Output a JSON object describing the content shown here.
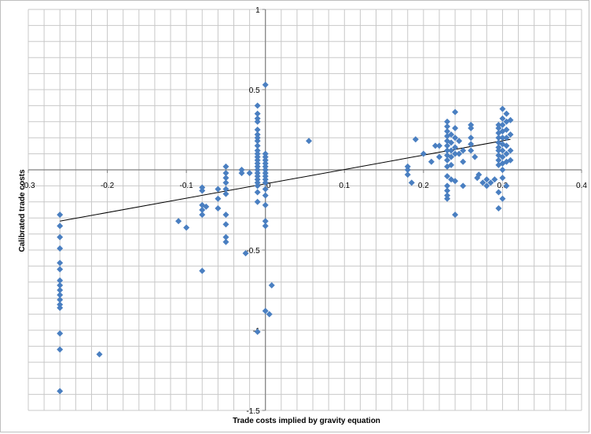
{
  "chart_data": {
    "type": "scatter",
    "title": "",
    "xlabel": "Trade costs implied by gravity equation",
    "ylabel": "Calibrated trade costs",
    "xlim": [
      -0.3,
      0.4
    ],
    "ylim": [
      -1.5,
      1
    ],
    "x_ticks": [
      -0.3,
      -0.2,
      -0.1,
      0,
      0.1,
      0.2,
      0.3,
      0.4
    ],
    "x_tick_labels": [
      "-0.3",
      "-0.2",
      "-0.1",
      "0",
      "0.1",
      "0.2",
      "0.3",
      "0.4"
    ],
    "y_ticks": [
      1,
      0.5,
      0,
      -0.5,
      -1,
      -1.5
    ],
    "y_tick_labels": [
      "1",
      "0.5",
      "",
      "-0.5",
      "-1",
      "-1.5"
    ],
    "grid": true,
    "legend": "none",
    "marker_color": "#4a7fc1",
    "line_color": "#000000",
    "trendline": {
      "x": [
        -0.26,
        0.31
      ],
      "y": [
        -0.32,
        0.19
      ]
    },
    "series": [
      {
        "points": [
          [
            -0.26,
            -0.28
          ],
          [
            -0.26,
            -0.35
          ],
          [
            -0.26,
            -0.42
          ],
          [
            -0.26,
            -0.49
          ],
          [
            -0.26,
            -0.58
          ],
          [
            -0.26,
            -0.62
          ],
          [
            -0.26,
            -0.69
          ],
          [
            -0.26,
            -0.72
          ],
          [
            -0.26,
            -0.75
          ],
          [
            -0.26,
            -0.78
          ],
          [
            -0.26,
            -0.81
          ],
          [
            -0.26,
            -0.84
          ],
          [
            -0.26,
            -0.86
          ],
          [
            -0.26,
            -1.02
          ],
          [
            -0.26,
            -1.12
          ],
          [
            -0.26,
            -1.38
          ],
          [
            -0.21,
            -1.15
          ],
          [
            -0.11,
            -0.32
          ],
          [
            -0.1,
            -0.36
          ],
          [
            -0.08,
            -0.11
          ],
          [
            -0.08,
            -0.13
          ],
          [
            -0.08,
            -0.22
          ],
          [
            -0.08,
            -0.25
          ],
          [
            -0.08,
            -0.28
          ],
          [
            -0.08,
            -0.63
          ],
          [
            -0.075,
            -0.23
          ],
          [
            -0.06,
            -0.12
          ],
          [
            -0.06,
            -0.18
          ],
          [
            -0.06,
            -0.24
          ],
          [
            -0.05,
            0.02
          ],
          [
            -0.05,
            -0.02
          ],
          [
            -0.05,
            -0.05
          ],
          [
            -0.05,
            -0.08
          ],
          [
            -0.05,
            -0.12
          ],
          [
            -0.05,
            -0.15
          ],
          [
            -0.05,
            -0.28
          ],
          [
            -0.05,
            -0.34
          ],
          [
            -0.05,
            -0.42
          ],
          [
            -0.05,
            -0.45
          ],
          [
            -0.03,
            0.0
          ],
          [
            -0.03,
            -0.02
          ],
          [
            -0.025,
            -0.52
          ],
          [
            -0.02,
            -0.02
          ],
          [
            -0.01,
            0.4
          ],
          [
            -0.01,
            0.35
          ],
          [
            -0.01,
            0.32
          ],
          [
            -0.01,
            0.3
          ],
          [
            -0.01,
            0.25
          ],
          [
            -0.01,
            0.22
          ],
          [
            -0.01,
            0.2
          ],
          [
            -0.01,
            0.18
          ],
          [
            -0.01,
            0.15
          ],
          [
            -0.01,
            0.12
          ],
          [
            -0.01,
            0.1
          ],
          [
            -0.01,
            0.08
          ],
          [
            -0.01,
            0.06
          ],
          [
            -0.01,
            0.04
          ],
          [
            -0.01,
            0.02
          ],
          [
            -0.01,
            0.0
          ],
          [
            -0.01,
            -0.02
          ],
          [
            -0.01,
            -0.04
          ],
          [
            -0.01,
            -0.06
          ],
          [
            -0.01,
            -0.08
          ],
          [
            -0.01,
            -0.1
          ],
          [
            -0.01,
            -0.14
          ],
          [
            -0.01,
            -0.2
          ],
          [
            -0.01,
            -1.01
          ],
          [
            0.0,
            0.53
          ],
          [
            0.0,
            0.1
          ],
          [
            0.0,
            0.08
          ],
          [
            0.0,
            0.06
          ],
          [
            0.0,
            0.04
          ],
          [
            0.0,
            0.02
          ],
          [
            0.0,
            0.0
          ],
          [
            0.0,
            -0.02
          ],
          [
            0.0,
            -0.04
          ],
          [
            0.0,
            -0.06
          ],
          [
            0.0,
            -0.08
          ],
          [
            0.0,
            -0.12
          ],
          [
            0.0,
            -0.16
          ],
          [
            0.0,
            -0.22
          ],
          [
            0.0,
            -0.32
          ],
          [
            0.0,
            -0.35
          ],
          [
            0.0,
            -0.88
          ],
          [
            0.005,
            -0.9
          ],
          [
            0.008,
            -0.72
          ],
          [
            0.055,
            0.18
          ],
          [
            0.18,
            0.02
          ],
          [
            0.18,
            0.0
          ],
          [
            0.18,
            -0.03
          ],
          [
            0.185,
            -0.08
          ],
          [
            0.19,
            0.19
          ],
          [
            0.2,
            0.1
          ],
          [
            0.21,
            0.05
          ],
          [
            0.215,
            0.15
          ],
          [
            0.22,
            0.15
          ],
          [
            0.22,
            0.08
          ],
          [
            0.23,
            0.3
          ],
          [
            0.23,
            0.27
          ],
          [
            0.23,
            0.24
          ],
          [
            0.23,
            0.21
          ],
          [
            0.23,
            0.18
          ],
          [
            0.23,
            0.15
          ],
          [
            0.23,
            0.12
          ],
          [
            0.23,
            0.09
          ],
          [
            0.23,
            0.06
          ],
          [
            0.23,
            0.02
          ],
          [
            0.23,
            -0.04
          ],
          [
            0.23,
            -0.1
          ],
          [
            0.23,
            -0.13
          ],
          [
            0.23,
            -0.16
          ],
          [
            0.23,
            -0.18
          ],
          [
            0.235,
            0.22
          ],
          [
            0.235,
            0.17
          ],
          [
            0.235,
            0.12
          ],
          [
            0.235,
            0.08
          ],
          [
            0.235,
            0.03
          ],
          [
            0.235,
            -0.06
          ],
          [
            0.24,
            0.36
          ],
          [
            0.24,
            0.26
          ],
          [
            0.24,
            0.2
          ],
          [
            0.24,
            0.14
          ],
          [
            0.24,
            0.1
          ],
          [
            0.24,
            -0.07
          ],
          [
            0.24,
            -0.28
          ],
          [
            0.245,
            0.18
          ],
          [
            0.245,
            0.1
          ],
          [
            0.25,
            0.12
          ],
          [
            0.25,
            0.05
          ],
          [
            0.25,
            -0.1
          ],
          [
            0.26,
            0.28
          ],
          [
            0.26,
            0.26
          ],
          [
            0.26,
            0.2
          ],
          [
            0.26,
            0.16
          ],
          [
            0.26,
            0.12
          ],
          [
            0.265,
            0.08
          ],
          [
            0.268,
            -0.05
          ],
          [
            0.27,
            -0.03
          ],
          [
            0.275,
            -0.08
          ],
          [
            0.28,
            -0.06
          ],
          [
            0.28,
            -0.1
          ],
          [
            0.285,
            -0.08
          ],
          [
            0.29,
            -0.06
          ],
          [
            0.295,
            0.28
          ],
          [
            0.295,
            0.26
          ],
          [
            0.295,
            0.23
          ],
          [
            0.295,
            0.2
          ],
          [
            0.295,
            0.17
          ],
          [
            0.295,
            0.14
          ],
          [
            0.295,
            0.12
          ],
          [
            0.295,
            0.09
          ],
          [
            0.295,
            0.06
          ],
          [
            0.295,
            0.03
          ],
          [
            0.295,
            -0.14
          ],
          [
            0.295,
            -0.24
          ],
          [
            0.3,
            0.38
          ],
          [
            0.3,
            0.32
          ],
          [
            0.3,
            0.28
          ],
          [
            0.3,
            0.24
          ],
          [
            0.3,
            0.2
          ],
          [
            0.3,
            0.16
          ],
          [
            0.3,
            0.12
          ],
          [
            0.3,
            0.08
          ],
          [
            0.3,
            0.04
          ],
          [
            0.3,
            0.0
          ],
          [
            0.3,
            -0.05
          ],
          [
            0.3,
            -0.18
          ],
          [
            0.305,
            0.35
          ],
          [
            0.305,
            0.3
          ],
          [
            0.305,
            0.25
          ],
          [
            0.305,
            0.2
          ],
          [
            0.305,
            0.15
          ],
          [
            0.305,
            0.1
          ],
          [
            0.305,
            0.05
          ],
          [
            0.305,
            -0.1
          ],
          [
            0.31,
            0.31
          ],
          [
            0.31,
            0.22
          ],
          [
            0.31,
            0.12
          ],
          [
            0.31,
            0.06
          ]
        ]
      }
    ]
  }
}
